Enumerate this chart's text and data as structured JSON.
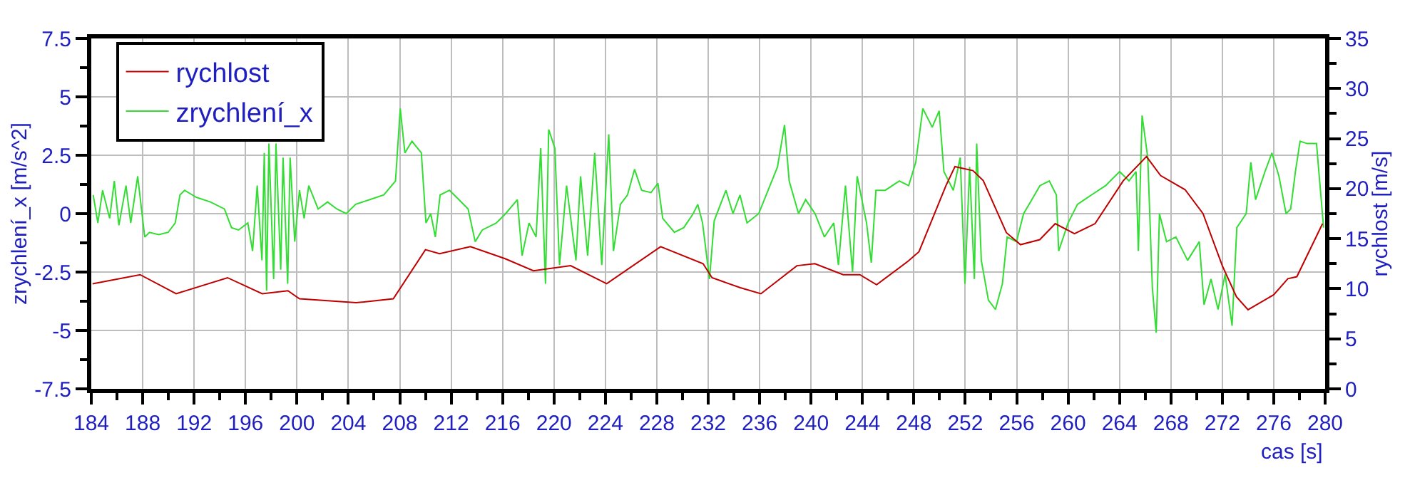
{
  "chart_data": {
    "type": "line",
    "xlabel": "cas [s]",
    "ylabel": "zrychlení_x [m/s^2]",
    "y2label": "rychlost [m/s]",
    "legend": "top left",
    "grid": true,
    "marker": "none",
    "line_style": "solid",
    "xlim": [
      184,
      280
    ],
    "ylim": [
      -7.5,
      7.5
    ],
    "y2lim": [
      0,
      35
    ],
    "xticks": [
      184,
      {
        "value": 186,
        "label": null
      },
      188,
      {
        "value": 190,
        "label": null
      },
      192,
      {
        "value": 194,
        "label": null
      },
      196,
      {
        "value": 198,
        "label": null
      },
      200,
      {
        "value": 202,
        "label": null
      },
      204,
      {
        "value": 206,
        "label": null
      },
      208,
      {
        "value": 210,
        "label": null
      },
      212,
      {
        "value": 214,
        "label": null
      },
      216,
      {
        "value": 218,
        "label": null
      },
      220,
      {
        "value": 222,
        "label": null
      },
      224,
      {
        "value": 226,
        "label": null
      },
      228,
      {
        "value": 230,
        "label": null
      },
      232,
      {
        "value": 234,
        "label": null
      },
      236,
      {
        "value": 238,
        "label": null
      },
      240,
      {
        "value": 242,
        "label": null
      },
      244,
      {
        "value": 246,
        "label": null
      },
      248,
      {
        "value": 250,
        "label": null
      },
      252,
      {
        "value": 254,
        "label": null
      },
      256,
      {
        "value": 258,
        "label": null
      },
      260,
      {
        "value": 262,
        "label": null
      },
      264,
      {
        "value": 266,
        "label": null
      },
      268,
      {
        "value": 270,
        "label": null
      },
      272,
      {
        "value": 274,
        "label": null
      },
      276,
      {
        "value": 278,
        "label": null
      },
      280
    ],
    "yticks": [
      -7.5,
      {
        "value": -6.25,
        "label": null
      },
      -5,
      {
        "value": -3.75,
        "label": null
      },
      -2.5,
      {
        "value": -1.25,
        "label": null
      },
      0,
      {
        "value": 1.25,
        "label": null
      },
      2.5,
      {
        "value": 3.75,
        "label": null
      },
      5,
      {
        "value": 6.25,
        "label": null
      },
      7.5
    ],
    "y2ticks": [
      0,
      {
        "value": 2.5,
        "label": null
      },
      5,
      {
        "value": 7.5,
        "label": null
      },
      10,
      {
        "value": 12.5,
        "label": null
      },
      15,
      {
        "value": 17.5,
        "label": null
      },
      20,
      {
        "value": 22.5,
        "label": null
      },
      25,
      {
        "value": 27.5,
        "label": null
      },
      30,
      {
        "value": 32.5,
        "label": null
      },
      35
    ],
    "series": [
      {
        "name": "rychlost",
        "color": "#c00000",
        "axis": "y2",
        "x": [
          184.1,
          187.8,
          190.6,
          194.6,
          197.3,
          199.3,
          200.2,
          204.6,
          207.5,
          210.0,
          211.1,
          213.5,
          216.2,
          218.4,
          221.3,
          224.1,
          228.3,
          231.6,
          232.3,
          234.5,
          236.1,
          238.9,
          240.3,
          242.5,
          243.8,
          245.1,
          247.6,
          248.4,
          250.5,
          251.2,
          252.6,
          253.4,
          255.2,
          256.3,
          257.8,
          259.0,
          260.5,
          262.1,
          264.3,
          266.1,
          267.2,
          269.1,
          270.5,
          272.0,
          273.1,
          274.0,
          276.0,
          277.1,
          277.8,
          279.8
        ],
        "values": [
          10.5,
          11.4,
          9.5,
          11.1,
          9.5,
          9.8,
          9.0,
          8.6,
          9.0,
          13.9,
          13.5,
          14.2,
          13.0,
          11.8,
          12.3,
          10.5,
          14.2,
          12.5,
          11.1,
          10.1,
          9.5,
          12.3,
          12.5,
          11.4,
          11.4,
          10.4,
          12.8,
          13.7,
          20.3,
          22.2,
          21.8,
          20.8,
          15.6,
          14.4,
          14.9,
          16.5,
          15.5,
          16.5,
          20.8,
          23.2,
          21.3,
          19.9,
          17.5,
          12.3,
          9.2,
          7.9,
          9.4,
          11.0,
          11.2,
          16.5
        ]
      },
      {
        "name": "zrychlení_x",
        "color": "#33dd33",
        "x": [
          184.15,
          184.51,
          184.88,
          185.43,
          185.79,
          186.15,
          186.7,
          187.07,
          187.61,
          188.16,
          188.53,
          189.25,
          189.98,
          190.53,
          190.9,
          191.26,
          192.17,
          193.27,
          194.36,
          194.91,
          195.45,
          196.18,
          196.55,
          196.91,
          197.28,
          197.46,
          197.64,
          197.82,
          198.19,
          198.37,
          198.74,
          198.92,
          199.28,
          199.47,
          199.83,
          200.2,
          200.56,
          200.92,
          201.65,
          202.38,
          203.11,
          203.84,
          204.57,
          205.67,
          206.76,
          207.67,
          208.04,
          208.4,
          208.95,
          209.68,
          210.04,
          210.41,
          210.77,
          211.14,
          211.87,
          212.6,
          213.32,
          213.87,
          214.42,
          215.51,
          216.24,
          217.15,
          217.52,
          218.06,
          218.61,
          218.97,
          219.34,
          219.59,
          220.07,
          220.43,
          220.98,
          221.71,
          222.07,
          222.62,
          223.17,
          223.72,
          224.26,
          224.63,
          225.17,
          225.72,
          226.27,
          226.82,
          227.55,
          228.09,
          228.46,
          229.37,
          230.1,
          230.83,
          231.19,
          231.56,
          232.1,
          232.47,
          233.38,
          233.93,
          234.47,
          235.02,
          235.93,
          236.66,
          237.39,
          237.94,
          238.3,
          239.03,
          239.58,
          240.31,
          241.04,
          241.77,
          242.13,
          242.68,
          243.23,
          243.59,
          244.32,
          244.69,
          245.05,
          245.78,
          246.87,
          247.6,
          248.15,
          248.7,
          249.43,
          249.97,
          250.34,
          251.07,
          251.61,
          251.98,
          252.34,
          252.71,
          252.89,
          253.25,
          253.8,
          254.35,
          254.89,
          255.26,
          255.99,
          256.54,
          257.08,
          257.81,
          258.54,
          259.09,
          259.27,
          260.0,
          260.73,
          261.82,
          262.92,
          264.01,
          264.74,
          265.29,
          265.47,
          265.76,
          266.2,
          266.56,
          266.86,
          267.11,
          267.66,
          268.39,
          269.3,
          270.21,
          270.58,
          271.12,
          271.67,
          272.22,
          272.76,
          273.13,
          273.86,
          274.22,
          274.59,
          275.32,
          275.86,
          276.41,
          276.96,
          277.32,
          277.69,
          278.05,
          278.6,
          279.33,
          279.88
        ],
        "values": [
          0.8,
          -0.4,
          1.0,
          -0.2,
          1.4,
          -0.5,
          1.2,
          -0.4,
          1.6,
          -1.0,
          -0.8,
          -0.9,
          -0.8,
          -0.4,
          0.8,
          1.0,
          0.7,
          0.5,
          0.2,
          -0.6,
          -0.7,
          -0.4,
          -1.6,
          1.2,
          -2.0,
          2.6,
          -3.3,
          3.0,
          -2.8,
          3.0,
          -2.4,
          2.4,
          -3.0,
          2.4,
          -1.2,
          1.0,
          -0.2,
          1.2,
          0.2,
          0.5,
          0.2,
          0.0,
          0.4,
          0.6,
          0.8,
          1.4,
          4.5,
          2.6,
          3.1,
          2.6,
          -0.4,
          0.0,
          -1.0,
          0.8,
          1.0,
          0.6,
          0.2,
          -1.2,
          -0.7,
          -0.4,
          0.0,
          0.6,
          -1.8,
          -0.4,
          -1.0,
          2.8,
          -3.0,
          3.6,
          2.8,
          -2.2,
          1.2,
          -2.0,
          1.6,
          -1.8,
          2.6,
          -2.2,
          3.4,
          -1.6,
          0.4,
          0.8,
          1.9,
          1.0,
          0.9,
          1.3,
          -0.2,
          -0.8,
          -0.6,
          0.0,
          0.4,
          -0.4,
          -2.8,
          -0.3,
          1.0,
          0.0,
          0.8,
          -0.4,
          0.0,
          1.0,
          2.0,
          3.8,
          1.4,
          0.0,
          0.6,
          0.0,
          -1.0,
          -0.4,
          -2.2,
          1.2,
          -2.5,
          1.6,
          -0.4,
          -2.1,
          1.0,
          1.0,
          1.4,
          1.2,
          2.2,
          4.5,
          3.7,
          4.4,
          1.8,
          1.0,
          2.4,
          -3.0,
          2.0,
          -2.8,
          3.0,
          -2.0,
          -3.7,
          -4.1,
          -3.0,
          -1.0,
          -1.2,
          0.0,
          0.5,
          1.2,
          1.4,
          0.8,
          -1.6,
          -0.4,
          0.4,
          0.8,
          1.2,
          1.8,
          1.4,
          1.8,
          -1.6,
          4.2,
          2.4,
          -3.2,
          -5.1,
          0.0,
          -1.2,
          -1.0,
          -2.0,
          -1.2,
          -3.9,
          -2.8,
          -4.1,
          -2.6,
          -4.8,
          -0.6,
          0.0,
          2.2,
          0.6,
          1.8,
          2.6,
          1.6,
          0.0,
          0.2,
          1.8,
          3.1,
          3.0,
          3.0,
          -0.6
        ]
      }
    ]
  }
}
